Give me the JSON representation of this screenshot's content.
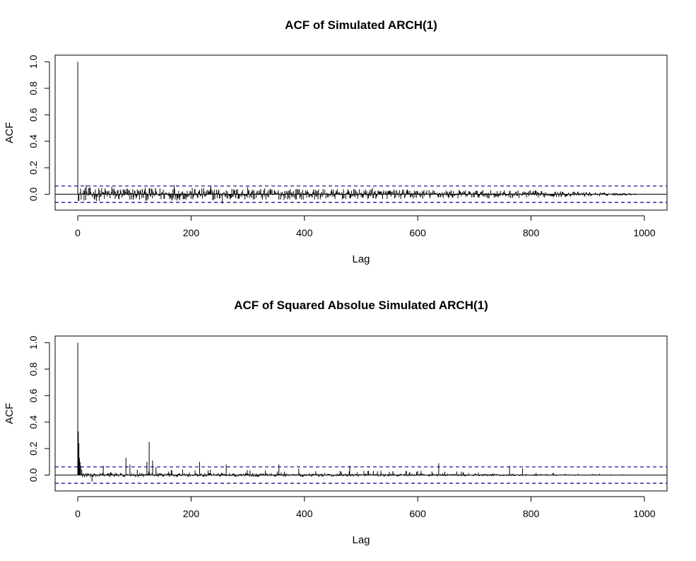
{
  "chart_data": [
    {
      "type": "acf",
      "title": "ACF of Simulated ARCH(1)",
      "xlabel": "Lag",
      "ylabel": "ACF",
      "xlim": [
        -40,
        1040
      ],
      "ylim": [
        -0.12,
        1.05
      ],
      "xticks": [
        0,
        200,
        400,
        600,
        800,
        1000
      ],
      "yticks": [
        0.0,
        0.2,
        0.4,
        0.6,
        0.8,
        1.0
      ],
      "max_lag": 985,
      "ci_bounds": [
        0.062,
        -0.062
      ],
      "colors": {
        "bars": "#000000",
        "ci": "#00008b",
        "zero": "#000000"
      },
      "highlights": [
        {
          "lag": 0,
          "acf": 1.0
        },
        {
          "lag": 15,
          "acf": 0.07
        },
        {
          "lag": 60,
          "acf": 0.058
        },
        {
          "lag": 170,
          "acf": 0.07
        },
        {
          "lag": 235,
          "acf": 0.06
        },
        {
          "lag": 255,
          "acf": -0.07
        },
        {
          "lag": 300,
          "acf": 0.055
        },
        {
          "lag": 520,
          "acf": 0.048
        }
      ],
      "envelope": [
        {
          "lag": 1,
          "amp": 0.052
        },
        {
          "lag": 300,
          "amp": 0.045
        },
        {
          "lag": 600,
          "amp": 0.035
        },
        {
          "lag": 800,
          "amp": 0.028
        },
        {
          "lag": 985,
          "amp": 0.008
        }
      ]
    },
    {
      "type": "acf",
      "title": "ACF of Squared Absolue Simulated ARCH(1)",
      "xlabel": "Lag",
      "ylabel": "ACF",
      "xlim": [
        -40,
        1040
      ],
      "ylim": [
        -0.12,
        1.05
      ],
      "xticks": [
        0,
        200,
        400,
        600,
        800,
        1000
      ],
      "yticks": [
        0.0,
        0.2,
        0.4,
        0.6,
        0.8,
        1.0
      ],
      "max_lag": 990,
      "ci_bounds": [
        0.062,
        -0.062
      ],
      "colors": {
        "bars": "#000000",
        "ci": "#00008b",
        "zero": "#000000"
      },
      "highlights": [
        {
          "lag": 0,
          "acf": 1.0
        },
        {
          "lag": 1,
          "acf": 0.33
        },
        {
          "lag": 2,
          "acf": 0.24
        },
        {
          "lag": 3,
          "acf": 0.13
        },
        {
          "lag": 4,
          "acf": 0.1
        },
        {
          "lag": 5,
          "acf": 0.07
        },
        {
          "lag": 7,
          "acf": 0.04
        },
        {
          "lag": 25,
          "acf": -0.05
        },
        {
          "lag": 45,
          "acf": 0.07
        },
        {
          "lag": 85,
          "acf": 0.13
        },
        {
          "lag": 92,
          "acf": 0.08
        },
        {
          "lag": 122,
          "acf": 0.1
        },
        {
          "lag": 126,
          "acf": 0.25
        },
        {
          "lag": 132,
          "acf": 0.11
        },
        {
          "lag": 138,
          "acf": 0.06
        },
        {
          "lag": 165,
          "acf": 0.04
        },
        {
          "lag": 215,
          "acf": 0.1
        },
        {
          "lag": 262,
          "acf": 0.08
        },
        {
          "lag": 355,
          "acf": 0.08
        },
        {
          "lag": 390,
          "acf": 0.05
        },
        {
          "lag": 480,
          "acf": 0.07
        },
        {
          "lag": 637,
          "acf": 0.09
        },
        {
          "lag": 762,
          "acf": 0.07
        },
        {
          "lag": 785,
          "acf": 0.05
        }
      ],
      "envelope": [
        {
          "lag": 1,
          "amp": 0.03
        },
        {
          "lag": 400,
          "amp": 0.025
        },
        {
          "lag": 700,
          "amp": 0.018
        },
        {
          "lag": 850,
          "amp": 0.01
        },
        {
          "lag": 990,
          "amp": 0.004
        }
      ]
    }
  ]
}
